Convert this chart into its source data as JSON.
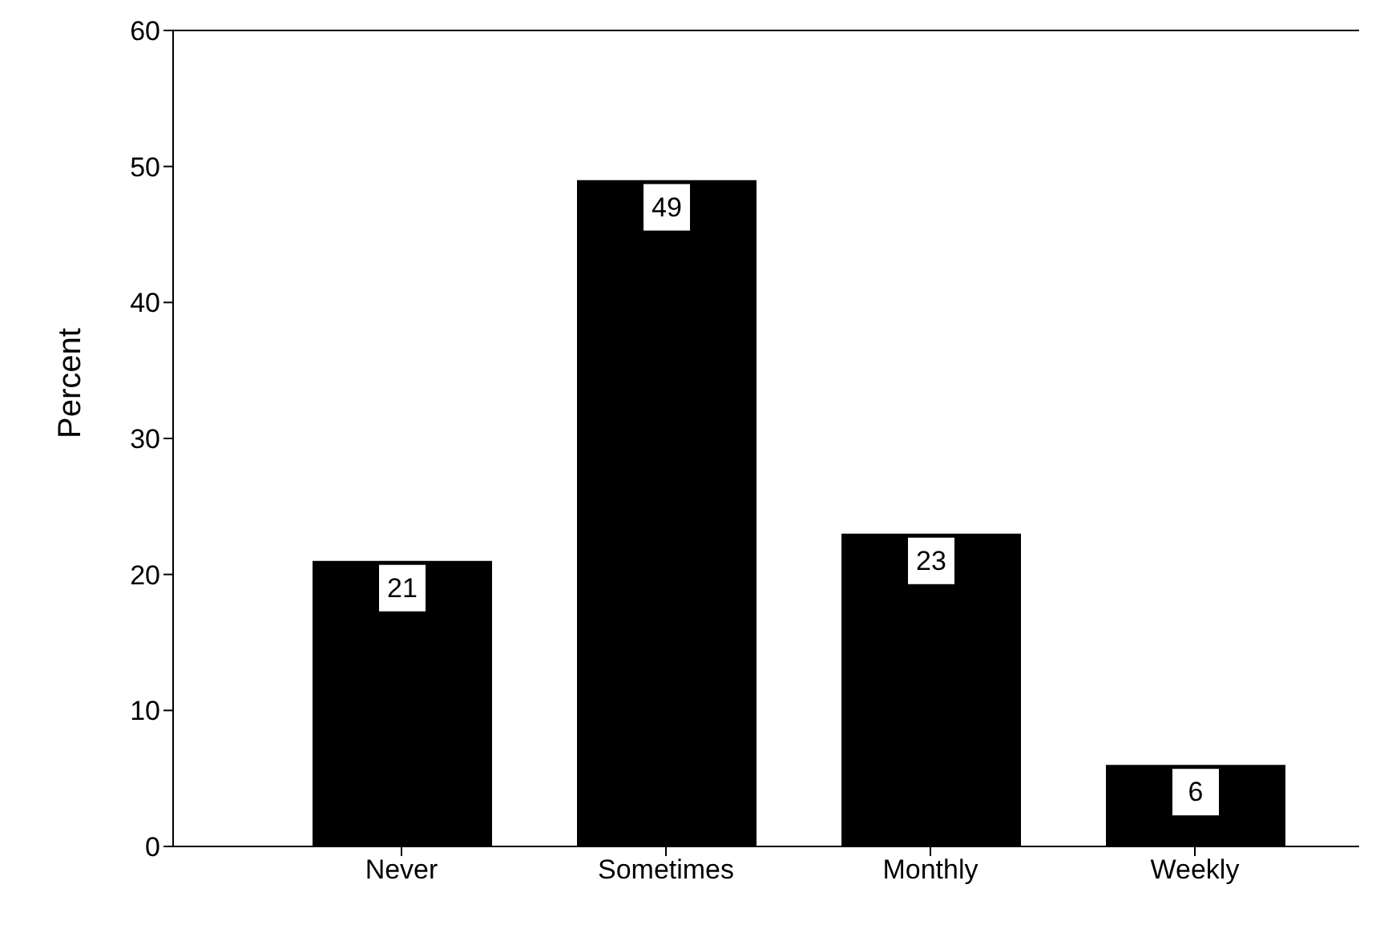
{
  "chart_data": {
    "type": "bar",
    "ylabel": "Percent",
    "categories": [
      "Never",
      "Sometimes",
      "Monthly",
      "Weekly"
    ],
    "values": [
      21,
      49,
      23,
      6
    ],
    "color": "#000000",
    "ylim": [
      0,
      60
    ],
    "yticks": [
      0,
      10,
      20,
      30,
      40,
      50,
      60
    ],
    "data_labels": true,
    "grid": false,
    "legend": false
  }
}
